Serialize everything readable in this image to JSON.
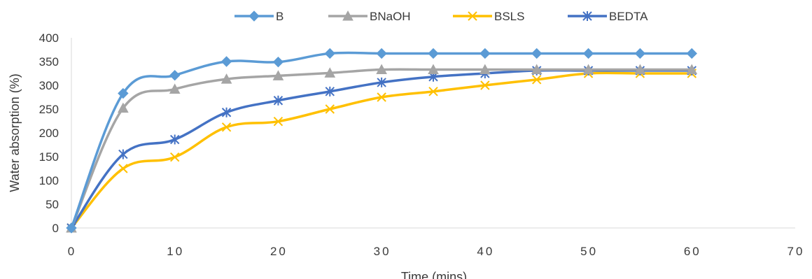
{
  "chart_data": {
    "type": "line",
    "title": "",
    "xlabel": "Time (mins)",
    "ylabel": "Water absorption (%)",
    "xlim": [
      0,
      70
    ],
    "ylim": [
      0,
      400
    ],
    "xticks": [
      0,
      10,
      20,
      30,
      40,
      50,
      60,
      70
    ],
    "yticks": [
      0,
      50,
      100,
      150,
      200,
      250,
      300,
      350,
      400
    ],
    "grid": false,
    "legend_position": "top",
    "series": [
      {
        "name": "B",
        "color": "#5b9bd5",
        "marker": "diamond",
        "x": [
          0,
          5,
          10,
          15,
          20,
          25,
          30,
          35,
          40,
          45,
          50,
          55,
          60
        ],
        "y": [
          0,
          283,
          321,
          350,
          349,
          367,
          367,
          367,
          367,
          367,
          367,
          367,
          367
        ]
      },
      {
        "name": "BNaOH",
        "color": "#a5a5a5",
        "marker": "triangle",
        "x": [
          0,
          5,
          10,
          15,
          20,
          25,
          30,
          35,
          40,
          45,
          50,
          55,
          60
        ],
        "y": [
          0,
          252,
          292,
          313,
          320,
          326,
          333,
          333,
          333,
          333,
          333,
          333,
          333
        ]
      },
      {
        "name": "BSLS",
        "color": "#ffc000",
        "marker": "x",
        "x": [
          0,
          5,
          10,
          15,
          20,
          25,
          30,
          35,
          40,
          45,
          50,
          55,
          60
        ],
        "y": [
          0,
          125,
          149,
          212,
          224,
          250,
          275,
          287,
          300,
          312,
          325,
          325,
          325
        ]
      },
      {
        "name": "BEDTA",
        "color": "#4472c4",
        "marker": "asterisk",
        "x": [
          0,
          5,
          10,
          15,
          20,
          25,
          30,
          35,
          40,
          45,
          50,
          55,
          60
        ],
        "y": [
          0,
          155,
          186,
          243,
          268,
          287,
          306,
          318,
          325,
          331,
          331,
          331,
          331
        ]
      }
    ]
  }
}
